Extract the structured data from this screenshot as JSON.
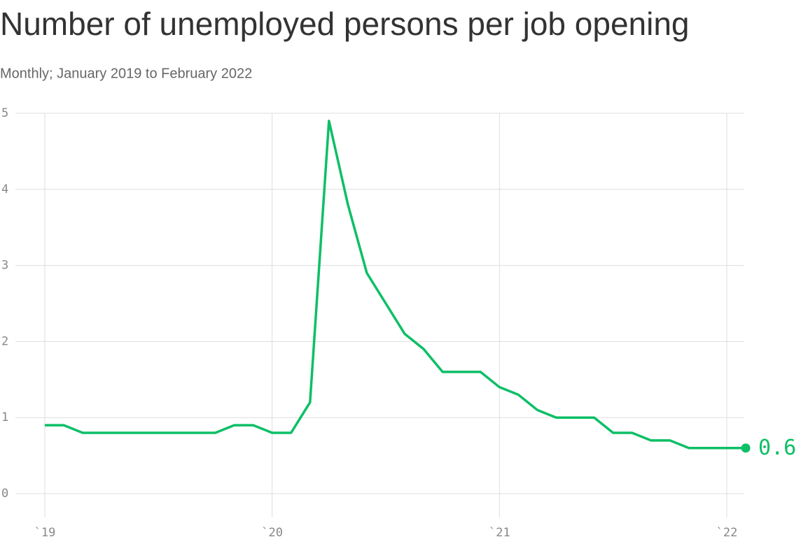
{
  "chart_data": {
    "type": "line",
    "title": "Number of unemployed persons per job opening",
    "subtitle": "Monthly; January 2019 to February 2022",
    "x": [
      "2019-01",
      "2019-02",
      "2019-03",
      "2019-04",
      "2019-05",
      "2019-06",
      "2019-07",
      "2019-08",
      "2019-09",
      "2019-10",
      "2019-11",
      "2019-12",
      "2020-01",
      "2020-02",
      "2020-03",
      "2020-04",
      "2020-05",
      "2020-06",
      "2020-07",
      "2020-08",
      "2020-09",
      "2020-10",
      "2020-11",
      "2020-12",
      "2021-01",
      "2021-02",
      "2021-03",
      "2021-04",
      "2021-05",
      "2021-06",
      "2021-07",
      "2021-08",
      "2021-09",
      "2021-10",
      "2021-11",
      "2021-12",
      "2022-01",
      "2022-02"
    ],
    "series": [
      {
        "name": "Unemployed persons per job opening",
        "color": "#0dbf66",
        "values": [
          0.9,
          0.9,
          0.8,
          0.8,
          0.8,
          0.8,
          0.8,
          0.8,
          0.8,
          0.8,
          0.9,
          0.9,
          0.8,
          0.8,
          1.2,
          4.9,
          3.8,
          2.9,
          2.5,
          2.1,
          1.9,
          1.6,
          1.6,
          1.6,
          1.4,
          1.3,
          1.1,
          1.0,
          1.0,
          1.0,
          0.8,
          0.8,
          0.7,
          0.7,
          0.6,
          0.6,
          0.6,
          0.6
        ]
      }
    ],
    "ylim": [
      0,
      5
    ],
    "yticks": [
      0,
      1,
      2,
      3,
      4,
      5
    ],
    "xticks": [
      {
        "value": "2019-01",
        "label": "`19"
      },
      {
        "value": "2020-01",
        "label": "`20"
      },
      {
        "value": "2021-01",
        "label": "`21"
      },
      {
        "value": "2022-01",
        "label": "`22"
      }
    ],
    "grid": true
  }
}
